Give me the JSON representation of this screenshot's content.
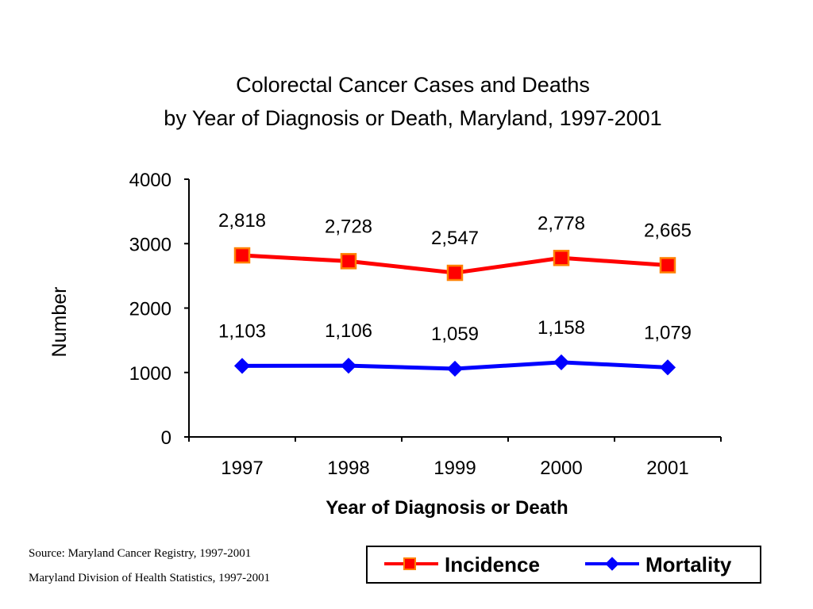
{
  "chart_data": {
    "type": "line",
    "title": "Colorectal Cancer Cases and Deaths",
    "subtitle": "by Year of Diagnosis or Death, Maryland, 1997-2001",
    "xlabel": "Year of Diagnosis or Death",
    "ylabel": "Number",
    "categories": [
      "1997",
      "1998",
      "1999",
      "2000",
      "2001"
    ],
    "ylim": [
      0,
      4000
    ],
    "yticks": [
      "0",
      "1000",
      "2000",
      "3000",
      "4000"
    ],
    "grid": false,
    "legend_position": "bottom-right",
    "series": [
      {
        "name": "Incidence",
        "values": [
          2818,
          2728,
          2547,
          2778,
          2665
        ],
        "labels": [
          "2,818",
          "2,728",
          "2,547",
          "2,778",
          "2,665"
        ],
        "color": "#ff0000",
        "marker": "square",
        "marker_fill": "#ff0000",
        "marker_stroke": "#ff8000"
      },
      {
        "name": "Mortality",
        "values": [
          1103,
          1106,
          1059,
          1158,
          1079
        ],
        "labels": [
          "1,103",
          "1,106",
          "1,059",
          "1,158",
          "1,079"
        ],
        "color": "#0000ff",
        "marker": "diamond",
        "marker_fill": "#0000ff",
        "marker_stroke": "#0000ff"
      }
    ]
  },
  "source": {
    "line1": "Source: Maryland Cancer Registry, 1997-2001",
    "line2": "Maryland Division of Health Statistics, 1997-2001"
  }
}
